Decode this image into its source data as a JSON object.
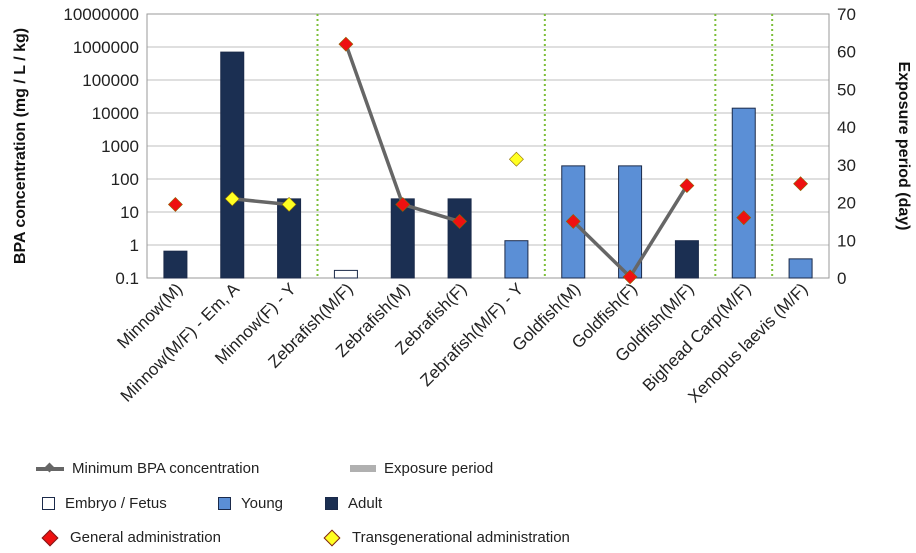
{
  "chart_data": {
    "type": "bar",
    "categories": [
      "Minnow(M)",
      "Minnow(M/F) - Em, A",
      "Minnow(F) - Y",
      "Zebrafish(M/F)",
      "Zebrafish(M)",
      "Zebrafish(F)",
      "Zebrafish(M/F) - Y",
      "Goldfish(M)",
      "Goldfish(F)",
      "Goldfish(M/F)",
      "Bighead Carp(M/F)",
      "Xenopus laevis (M/F)"
    ],
    "ylabel": "BPA concentration (mg / L / kg)",
    "y2label": "Exposure period (day)",
    "yscale": "log",
    "ylim": [
      0.1,
      10000000
    ],
    "y_ticks": [
      "0.1",
      "1",
      "10",
      "100",
      "1000",
      "10000",
      "100000",
      "1000000",
      "10000000"
    ],
    "y2lim": [
      0,
      70
    ],
    "y2_ticks": [
      "0",
      "10",
      "20",
      "30",
      "40",
      "50",
      "60",
      "70"
    ],
    "grid": true,
    "group_separators_after": [
      "Minnow(F) - Y",
      "Zebrafish(M/F) - Y",
      "Goldfish(M/F)",
      "Bighead Carp(M/F)"
    ],
    "bars": {
      "name": "Minimum BPA concentration",
      "values": [
        0.65,
        700000,
        25,
        0.17,
        25,
        25,
        1.35,
        250,
        250,
        1.35,
        14000,
        0.38
      ],
      "stage": [
        "Adult",
        "Adult",
        "Adult",
        "Embryo / Fetus",
        "Adult",
        "Adult",
        "Young",
        "Young",
        "Young",
        "Adult",
        "Young",
        "Young"
      ]
    },
    "exposure_markers": {
      "values": [
        19.5,
        21,
        19.5,
        62,
        19.5,
        15,
        31.5,
        15,
        0.3,
        24.5,
        16,
        25
      ],
      "administration": [
        "General administration",
        "Transgenerational administration",
        "Transgenerational administration",
        "General administration",
        "General administration",
        "General administration",
        "Transgenerational administration",
        "General administration",
        "General administration",
        "General administration",
        "General administration",
        "General administration"
      ]
    },
    "exposure_line_segments": [
      [
        "Minnow(M/F) - Em, A",
        "Minnow(F) - Y"
      ],
      [
        "Zebrafish(M/F)",
        "Zebrafish(M)",
        "Zebrafish(F)"
      ],
      [
        "Goldfish(M)",
        "Goldfish(F)",
        "Goldfish(M/F)"
      ]
    ],
    "colors": {
      "Adult": "#1b2f52",
      "Young": "#5b8fd6",
      "Embryo / Fetus": "#ffffff",
      "General administration": "#ee1111",
      "Transgenerational administration": "#ffff22",
      "line": "#666666",
      "exposure_period": "#b0b0b0",
      "separator": "#7cbf3a",
      "grid": "#bfbfbf"
    },
    "legend": {
      "position": "bottom",
      "line": "Minimum BPA concentration",
      "exposure": "Exposure period",
      "embryo": "Embryo / Fetus",
      "young": "Young",
      "adult": "Adult",
      "general": "General administration",
      "transgenerational": "Transgenerational administration"
    }
  }
}
